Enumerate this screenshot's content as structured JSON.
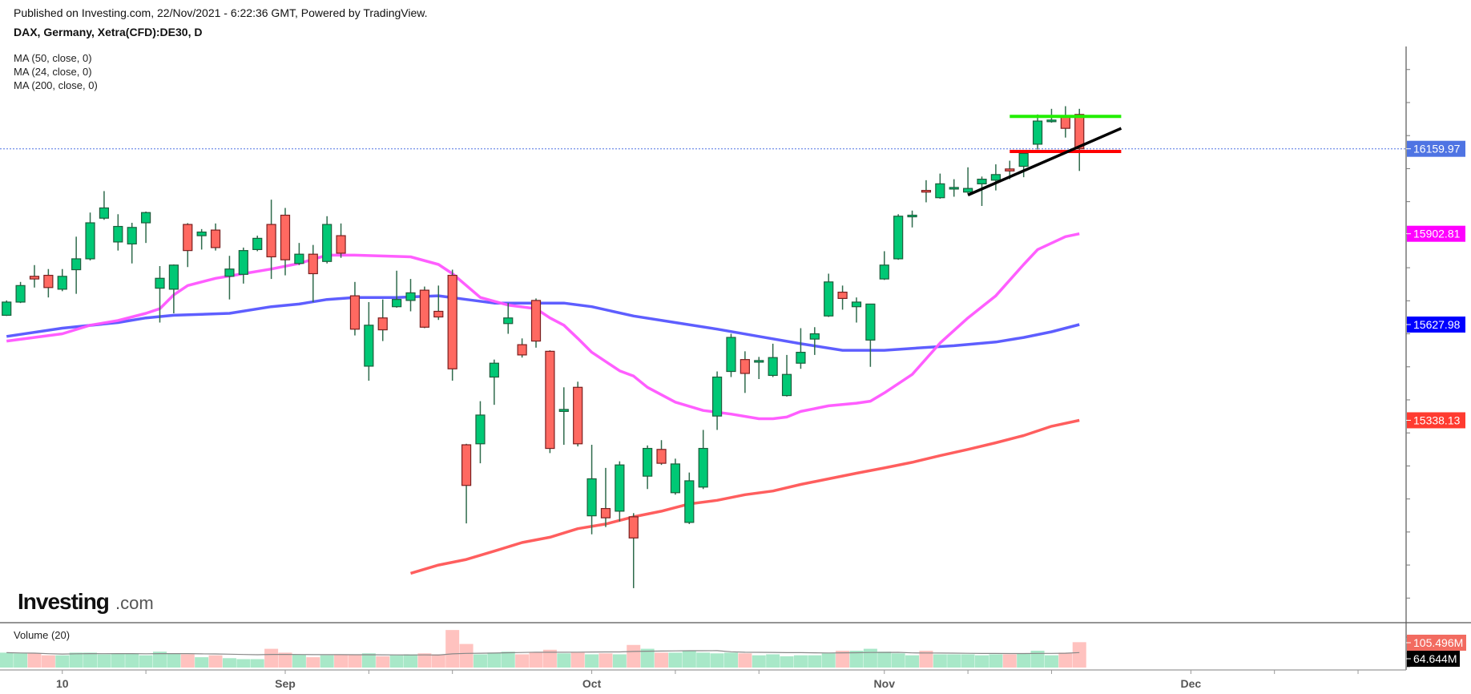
{
  "header": {
    "published": "Published on Investing.com, 22/Nov/2021 - 6:22:36 GMT, Powered by TradingView.",
    "symbol_title": "DAX, Germany, Xetra(CFD):DE30, D"
  },
  "legend": {
    "indicators": [
      "MA (50, close, 0)",
      "MA (24, close, 0)",
      "MA (200, close, 0)"
    ],
    "volume": "Volume (20)"
  },
  "logo": {
    "main": "Investing",
    "suffix": ".com"
  },
  "colors": {
    "up": "#00c875",
    "up_border": "#1d5e3c",
    "down": "#ff6961",
    "down_border": "#7a1f1f",
    "vol_up": "#a8e8c8",
    "vol_down": "#ffc2bf",
    "ma50": "#5555ff",
    "ma24": "#ff55ff",
    "ma200": "#ff5555",
    "last_price": "#4f74e3",
    "ma24_label": "#ff00ff",
    "ma50_label": "#0000ff",
    "ma200_label": "#ff3b30",
    "volume_label": "#f26b60",
    "volume_ma_label": "#000000"
  },
  "chart_data": {
    "type": "candlestick",
    "title": "DAX, Germany, Xetra(CFD):DE30, D",
    "y_range": [
      14790,
      16570
    ],
    "y_tick_step": 100,
    "grid": false,
    "x_labels": [
      {
        "date": "2021-08-10",
        "label": "10"
      },
      {
        "date": "2021-09-01",
        "label": "Sep"
      },
      {
        "date": "2021-10-01",
        "label": "Oct"
      },
      {
        "date": "2021-11-01",
        "label": "Nov"
      },
      {
        "date": "2021-12-01",
        "label": "Dec"
      }
    ],
    "candles_fields": [
      "date",
      "open",
      "high",
      "low",
      "close",
      "volume_M"
    ],
    "candles": [
      [
        "2021-08-04",
        15656,
        15701,
        15654,
        15696,
        62
      ],
      [
        "2021-08-05",
        15696,
        15757,
        15693,
        15746,
        59
      ],
      [
        "2021-08-06",
        15774,
        15808,
        15740,
        15766,
        59
      ],
      [
        "2021-08-09",
        15777,
        15796,
        15710,
        15740,
        51
      ],
      [
        "2021-08-10",
        15735,
        15796,
        15729,
        15774,
        51
      ],
      [
        "2021-08-11",
        15794,
        15894,
        15721,
        15827,
        62
      ],
      [
        "2021-08-12",
        15827,
        15967,
        15822,
        15936,
        62
      ],
      [
        "2021-08-13",
        15950,
        16032,
        15945,
        15981,
        55
      ],
      [
        "2021-08-16",
        15878,
        15962,
        15852,
        15925,
        59
      ],
      [
        "2021-08-17",
        15872,
        15936,
        15813,
        15922,
        59
      ],
      [
        "2021-08-18",
        15936,
        15970,
        15875,
        15967,
        51
      ],
      [
        "2021-08-19",
        15738,
        15805,
        15634,
        15768,
        66
      ],
      [
        "2021-08-20",
        15735,
        15810,
        15662,
        15808,
        59
      ],
      [
        "2021-08-23",
        15931,
        15935,
        15802,
        15852,
        55
      ],
      [
        "2021-08-24",
        15897,
        15917,
        15855,
        15908,
        43
      ],
      [
        "2021-08-25",
        15914,
        15934,
        15852,
        15861,
        51
      ],
      [
        "2021-08-26",
        15774,
        15836,
        15704,
        15796,
        39
      ],
      [
        "2021-08-27",
        15780,
        15861,
        15752,
        15852,
        35
      ],
      [
        "2021-08-30",
        15855,
        15897,
        15850,
        15889,
        35
      ],
      [
        "2021-08-31",
        15931,
        16006,
        15766,
        15833,
        78
      ],
      [
        "2021-09-01",
        15959,
        15981,
        15777,
        15824,
        62
      ],
      [
        "2021-09-02",
        15813,
        15875,
        15808,
        15841,
        55
      ],
      [
        "2021-09-03",
        15841,
        15869,
        15696,
        15782,
        43
      ],
      [
        "2021-09-06",
        15819,
        15956,
        15813,
        15931,
        51
      ],
      [
        "2021-09-07",
        15897,
        15934,
        15830,
        15844,
        55
      ],
      [
        "2021-09-08",
        15715,
        15757,
        15595,
        15614,
        55
      ],
      [
        "2021-09-09",
        15502,
        15696,
        15458,
        15626,
        59
      ],
      [
        "2021-09-10",
        15648,
        15704,
        15578,
        15612,
        47
      ],
      [
        "2021-09-13",
        15682,
        15791,
        15679,
        15704,
        51
      ],
      [
        "2021-09-14",
        15701,
        15766,
        15668,
        15724,
        55
      ],
      [
        "2021-09-15",
        15732,
        15743,
        15617,
        15620,
        59
      ],
      [
        "2021-09-16",
        15668,
        15746,
        15642,
        15651,
        55
      ],
      [
        "2021-09-17",
        15777,
        15794,
        15458,
        15494,
        156
      ],
      [
        "2021-09-20",
        15264,
        15267,
        15026,
        15141,
        98
      ],
      [
        "2021-09-21",
        15267,
        15396,
        15208,
        15354,
        55
      ],
      [
        "2021-09-22",
        15469,
        15522,
        15385,
        15511,
        62
      ],
      [
        "2021-09-23",
        15631,
        15693,
        15600,
        15648,
        66
      ],
      [
        "2021-09-24",
        15567,
        15586,
        15528,
        15536,
        55
      ],
      [
        "2021-09-27",
        15701,
        15707,
        15558,
        15578,
        62
      ],
      [
        "2021-09-28",
        15547,
        15550,
        15239,
        15253,
        74
      ],
      [
        "2021-09-29",
        15365,
        15438,
        15264,
        15371,
        59
      ],
      [
        "2021-09-30",
        15438,
        15455,
        15259,
        15267,
        62
      ],
      [
        "2021-10-01",
        15049,
        15264,
        14993,
        15161,
        55
      ],
      [
        "2021-10-04",
        15071,
        15194,
        15015,
        15043,
        59
      ],
      [
        "2021-10-05",
        15063,
        15214,
        15032,
        15203,
        55
      ],
      [
        "2021-10-06",
        15046,
        15057,
        14830,
        14982,
        94
      ],
      [
        "2021-10-07",
        15169,
        15262,
        15130,
        15253,
        78
      ],
      [
        "2021-10-08",
        15250,
        15278,
        15203,
        15208,
        62
      ],
      [
        "2021-10-11",
        15119,
        15222,
        15113,
        15206,
        62
      ],
      [
        "2021-10-12",
        15029,
        15180,
        15024,
        15155,
        70
      ],
      [
        "2021-10-13",
        15136,
        15309,
        15130,
        15253,
        62
      ],
      [
        "2021-10-14",
        15351,
        15486,
        15309,
        15469,
        59
      ],
      [
        "2021-10-15",
        15486,
        15600,
        15469,
        15589,
        62
      ],
      [
        "2021-10-18",
        15522,
        15547,
        15421,
        15480,
        59
      ],
      [
        "2021-10-19",
        15516,
        15530,
        15463,
        15519,
        51
      ],
      [
        "2021-10-20",
        15474,
        15570,
        15469,
        15528,
        55
      ],
      [
        "2021-10-21",
        15413,
        15536,
        15410,
        15477,
        47
      ],
      [
        "2021-10-22",
        15511,
        15617,
        15494,
        15544,
        51
      ],
      [
        "2021-10-25",
        15584,
        15620,
        15536,
        15600,
        51
      ],
      [
        "2021-10-26",
        15654,
        15782,
        15651,
        15757,
        59
      ],
      [
        "2021-10-27",
        15726,
        15746,
        15673,
        15707,
        70
      ],
      [
        "2021-10-28",
        15682,
        15710,
        15634,
        15696,
        70
      ],
      [
        "2021-10-29",
        15581,
        15690,
        15500,
        15690,
        78
      ],
      [
        "2021-11-01",
        15766,
        15850,
        15763,
        15808,
        66
      ],
      [
        "2021-11-02",
        15827,
        15962,
        15824,
        15956,
        59
      ],
      [
        "2021-11-03",
        15956,
        15973,
        15922,
        15959,
        51
      ],
      [
        "2021-11-04",
        16034,
        16065,
        15998,
        16029,
        70
      ],
      [
        "2021-11-05",
        16012,
        16085,
        16009,
        16054,
        55
      ],
      [
        "2021-11-08",
        16040,
        16068,
        16015,
        16043,
        55
      ],
      [
        "2021-11-09",
        16029,
        16104,
        16023,
        16040,
        55
      ],
      [
        "2021-11-10",
        16054,
        16076,
        15987,
        16068,
        51
      ],
      [
        "2021-11-11",
        16065,
        16113,
        16034,
        16082,
        55
      ],
      [
        "2021-11-12",
        16099,
        16124,
        16068,
        16093,
        55
      ],
      [
        "2021-11-15",
        16107,
        16149,
        16074,
        16146,
        59
      ],
      [
        "2021-11-16",
        16174,
        16264,
        16158,
        16244,
        70
      ],
      [
        "2021-11-17",
        16244,
        16281,
        16239,
        16247,
        51
      ],
      [
        "2021-11-18",
        16258,
        16289,
        16194,
        16222,
        62
      ],
      [
        "2021-11-19",
        16264,
        16281,
        16093,
        16159.97,
        105.496
      ]
    ],
    "moving_averages": [
      {
        "name": "MA (50, close, 0)",
        "color_key": "ma50",
        "last": "15627.98",
        "points": [
          [
            "2021-08-04",
            15592
          ],
          [
            "2021-08-10",
            15617
          ],
          [
            "2021-08-16",
            15634
          ],
          [
            "2021-08-18",
            15648
          ],
          [
            "2021-08-20",
            15656
          ],
          [
            "2021-08-26",
            15662
          ],
          [
            "2021-08-31",
            15682
          ],
          [
            "2021-09-02",
            15690
          ],
          [
            "2021-09-06",
            15704
          ],
          [
            "2021-09-08",
            15710
          ],
          [
            "2021-09-13",
            15710
          ],
          [
            "2021-09-16",
            15715
          ],
          [
            "2021-09-20",
            15704
          ],
          [
            "2021-09-22",
            15693
          ],
          [
            "2021-09-29",
            15693
          ],
          [
            "2021-10-01",
            15682
          ],
          [
            "2021-10-06",
            15654
          ],
          [
            "2021-10-11",
            15634
          ],
          [
            "2021-10-14",
            15614
          ],
          [
            "2021-10-19",
            15592
          ],
          [
            "2021-10-22",
            15570
          ],
          [
            "2021-10-27",
            15550
          ],
          [
            "2021-11-01",
            15550
          ],
          [
            "2021-11-03",
            15556
          ],
          [
            "2021-11-08",
            15564
          ],
          [
            "2021-11-11",
            15575
          ],
          [
            "2021-11-15",
            15589
          ],
          [
            "2021-11-17",
            15606
          ],
          [
            "2021-11-19",
            15627.98
          ]
        ]
      },
      {
        "name": "MA (24, close, 0)",
        "color_key": "ma24",
        "last": "15902.81",
        "points": [
          [
            "2021-08-04",
            15578
          ],
          [
            "2021-08-10",
            15600
          ],
          [
            "2021-08-12",
            15626
          ],
          [
            "2021-08-16",
            15640
          ],
          [
            "2021-08-18",
            15662
          ],
          [
            "2021-08-19",
            15676
          ],
          [
            "2021-08-20",
            15718
          ],
          [
            "2021-08-23",
            15746
          ],
          [
            "2021-08-25",
            15768
          ],
          [
            "2021-08-27",
            15782
          ],
          [
            "2021-08-31",
            15796
          ],
          [
            "2021-09-02",
            15813
          ],
          [
            "2021-09-06",
            15838
          ],
          [
            "2021-09-08",
            15838
          ],
          [
            "2021-09-14",
            15833
          ],
          [
            "2021-09-16",
            15810
          ],
          [
            "2021-09-17",
            15782
          ],
          [
            "2021-09-20",
            15746
          ],
          [
            "2021-09-21",
            15710
          ],
          [
            "2021-09-23",
            15687
          ],
          [
            "2021-09-27",
            15676
          ],
          [
            "2021-09-28",
            15648
          ],
          [
            "2021-09-29",
            15626
          ],
          [
            "2021-09-30",
            15586
          ],
          [
            "2021-10-01",
            15544
          ],
          [
            "2021-10-05",
            15488
          ],
          [
            "2021-10-06",
            15472
          ],
          [
            "2021-10-07",
            15438
          ],
          [
            "2021-10-11",
            15393
          ],
          [
            "2021-10-13",
            15368
          ],
          [
            "2021-10-15",
            15357
          ],
          [
            "2021-10-19",
            15343
          ],
          [
            "2021-10-20",
            15343
          ],
          [
            "2021-10-21",
            15348
          ],
          [
            "2021-10-22",
            15365
          ],
          [
            "2021-10-26",
            15382
          ],
          [
            "2021-10-28",
            15390
          ],
          [
            "2021-10-29",
            15396
          ],
          [
            "2021-11-01",
            15421
          ],
          [
            "2021-11-03",
            15477
          ],
          [
            "2021-11-05",
            15572
          ],
          [
            "2021-11-09",
            15648
          ],
          [
            "2021-11-11",
            15715
          ],
          [
            "2021-11-15",
            15810
          ],
          [
            "2021-11-16",
            15855
          ],
          [
            "2021-11-18",
            15894
          ],
          [
            "2021-11-19",
            15902.81
          ]
        ]
      },
      {
        "name": "MA (200, close, 0)",
        "color_key": "ma200",
        "last": "15338.13",
        "points": [
          [
            "2021-09-14",
            14875
          ],
          [
            "2021-09-16",
            14900
          ],
          [
            "2021-09-20",
            14917
          ],
          [
            "2021-09-22",
            14942
          ],
          [
            "2021-09-24",
            14968
          ],
          [
            "2021-09-28",
            14984
          ],
          [
            "2021-09-30",
            15010
          ],
          [
            "2021-10-04",
            15024
          ],
          [
            "2021-10-06",
            15046
          ],
          [
            "2021-10-08",
            15063
          ],
          [
            "2021-10-12",
            15085
          ],
          [
            "2021-10-14",
            15096
          ],
          [
            "2021-10-18",
            15113
          ],
          [
            "2021-10-20",
            15124
          ],
          [
            "2021-10-22",
            15144
          ],
          [
            "2021-10-26",
            15161
          ],
          [
            "2021-10-28",
            15178
          ],
          [
            "2021-11-01",
            15194
          ],
          [
            "2021-11-03",
            15211
          ],
          [
            "2021-11-05",
            15231
          ],
          [
            "2021-11-09",
            15250
          ],
          [
            "2021-11-11",
            15270
          ],
          [
            "2021-11-15",
            15292
          ],
          [
            "2021-11-17",
            15320
          ],
          [
            "2021-11-19",
            15338.13
          ]
        ]
      }
    ],
    "last_price": "16159.97",
    "volume_last": "105.496M",
    "volume_ma_last": "64.644M",
    "drawings": [
      {
        "type": "horizontal",
        "color": "#22ee00",
        "price": 16258,
        "from": "2021-11-12",
        "to": "2021-11-24"
      },
      {
        "type": "horizontal",
        "color": "#ff0000",
        "price": 16152,
        "from": "2021-11-12",
        "to": "2021-11-24"
      },
      {
        "type": "trendline",
        "color": "#000000",
        "from": [
          "2021-11-09",
          16020
        ],
        "to": [
          "2021-11-24",
          16222
        ]
      }
    ]
  }
}
